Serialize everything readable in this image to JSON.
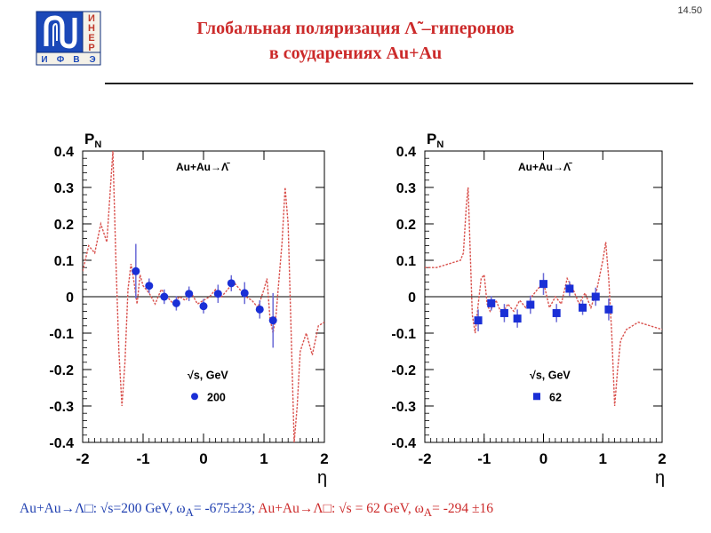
{
  "slide": {
    "number": "14.50",
    "title_line1": "Глобальная поляризация Λ̃ –гиперонов",
    "title_line2": "в соударениях Au+Au",
    "logo": {
      "letters_right": [
        "И",
        "Н",
        "Е",
        "Р"
      ],
      "letters_bottom": [
        "И",
        "Ф",
        "В",
        "Э"
      ]
    }
  },
  "footer": {
    "part1": "Au+Au→Λ□:  √s=200 GeV,  ω",
    "part1_sub": "A",
    "part1_end": "= -675±23;",
    "part2": "Au+Au→Λ□: √s = 62 GeV,  ω",
    "part2_sub": "A",
    "part2_end": "= -294 ±16"
  },
  "chart_data": [
    {
      "type": "scatter",
      "ylabel": "P",
      "ylabel_sub": "N",
      "xlabel": "η",
      "reaction_label": "Au+Au→Λ̄",
      "legend_title": "√s, GeV",
      "legend_entry": "200",
      "marker": "circle",
      "marker_color": "#1a2fd6",
      "curve_color": "#d9534f",
      "xlim": [
        -2,
        2
      ],
      "ylim": [
        -0.4,
        0.4
      ],
      "x_ticks": [
        "-2",
        "-1",
        "0",
        "1",
        "2"
      ],
      "y_ticks": [
        "0.4",
        "0.3",
        "0.2",
        "0.1",
        "0",
        "-0.1",
        "-0.2",
        "-0.3",
        "-0.4"
      ],
      "points": [
        {
          "x": -1.12,
          "y": 0.07,
          "err": 0.075
        },
        {
          "x": -0.9,
          "y": 0.03,
          "err": 0.02
        },
        {
          "x": -0.65,
          "y": 0.0,
          "err": 0.02
        },
        {
          "x": -0.45,
          "y": -0.018,
          "err": 0.02
        },
        {
          "x": -0.24,
          "y": 0.008,
          "err": 0.02
        },
        {
          "x": 0.0,
          "y": -0.026,
          "err": 0.02
        },
        {
          "x": 0.24,
          "y": 0.008,
          "err": 0.025
        },
        {
          "x": 0.46,
          "y": 0.037,
          "err": 0.022
        },
        {
          "x": 0.68,
          "y": 0.01,
          "err": 0.03
        },
        {
          "x": 0.93,
          "y": -0.035,
          "err": 0.025
        },
        {
          "x": 1.15,
          "y": -0.065,
          "err": 0.075
        }
      ],
      "curve": [
        [
          -2,
          0.07
        ],
        [
          -1.9,
          0.14
        ],
        [
          -1.8,
          0.12
        ],
        [
          -1.7,
          0.2
        ],
        [
          -1.6,
          0.15
        ],
        [
          -1.5,
          0.4
        ],
        [
          -1.45,
          0.1
        ],
        [
          -1.4,
          -0.15
        ],
        [
          -1.35,
          -0.3
        ],
        [
          -1.3,
          -0.18
        ],
        [
          -1.25,
          0.02
        ],
        [
          -1.2,
          0.09
        ],
        [
          -1.15,
          0.04
        ],
        [
          -1.1,
          -0.02
        ],
        [
          -1.05,
          0.06
        ],
        [
          -1.0,
          0.03
        ],
        [
          -0.9,
          0.01
        ],
        [
          -0.8,
          -0.02
        ],
        [
          -0.7,
          0.02
        ],
        [
          -0.6,
          0.0
        ],
        [
          -0.5,
          -0.02
        ],
        [
          -0.4,
          0.0
        ],
        [
          -0.3,
          -0.01
        ],
        [
          -0.2,
          0.01
        ],
        [
          -0.1,
          -0.02
        ],
        [
          0,
          -0.01
        ],
        [
          0.1,
          0.0
        ],
        [
          0.2,
          0.02
        ],
        [
          0.3,
          0.0
        ],
        [
          0.4,
          0.02
        ],
        [
          0.5,
          0.04
        ],
        [
          0.6,
          0.02
        ],
        [
          0.7,
          0.0
        ],
        [
          0.8,
          -0.01
        ],
        [
          0.9,
          -0.03
        ],
        [
          1.0,
          0.02
        ],
        [
          1.05,
          0.05
        ],
        [
          1.1,
          -0.06
        ],
        [
          1.15,
          -0.1
        ],
        [
          1.2,
          -0.05
        ],
        [
          1.3,
          0.15
        ],
        [
          1.35,
          0.3
        ],
        [
          1.4,
          0.2
        ],
        [
          1.45,
          -0.1
        ],
        [
          1.5,
          -0.4
        ],
        [
          1.55,
          -0.3
        ],
        [
          1.6,
          -0.15
        ],
        [
          1.7,
          -0.1
        ],
        [
          1.8,
          -0.16
        ],
        [
          1.9,
          -0.08
        ],
        [
          2,
          -0.07
        ]
      ]
    },
    {
      "type": "scatter",
      "ylabel": "P",
      "ylabel_sub": "N",
      "xlabel": "η",
      "reaction_label": "Au+Au→Λ̄",
      "legend_title": "√s, GeV",
      "legend_entry": "62",
      "marker": "square",
      "marker_color": "#1a2fd6",
      "curve_color": "#d9534f",
      "xlim": [
        -2,
        2
      ],
      "ylim": [
        -0.4,
        0.4
      ],
      "x_ticks": [
        "-2",
        "-1",
        "0",
        "1",
        "2"
      ],
      "y_ticks": [
        "0.4",
        "0.3",
        "0.2",
        "0.1",
        "0",
        "-0.1",
        "-0.2",
        "-0.3",
        "-0.4"
      ],
      "points": [
        {
          "x": -1.1,
          "y": -0.065,
          "err": 0.03
        },
        {
          "x": -0.88,
          "y": -0.018,
          "err": 0.02
        },
        {
          "x": -0.66,
          "y": -0.045,
          "err": 0.025
        },
        {
          "x": -0.44,
          "y": -0.06,
          "err": 0.025
        },
        {
          "x": -0.22,
          "y": -0.022,
          "err": 0.025
        },
        {
          "x": 0.0,
          "y": 0.035,
          "err": 0.03
        },
        {
          "x": 0.22,
          "y": -0.045,
          "err": 0.025
        },
        {
          "x": 0.44,
          "y": 0.022,
          "err": 0.02
        },
        {
          "x": 0.66,
          "y": -0.03,
          "err": 0.02
        },
        {
          "x": 0.88,
          "y": 0.0,
          "err": 0.025
        },
        {
          "x": 1.1,
          "y": -0.035,
          "err": 0.03
        }
      ],
      "curve": [
        [
          -2,
          0.08
        ],
        [
          -1.8,
          0.08
        ],
        [
          -1.6,
          0.09
        ],
        [
          -1.4,
          0.1
        ],
        [
          -1.35,
          0.12
        ],
        [
          -1.3,
          0.25
        ],
        [
          -1.27,
          0.3
        ],
        [
          -1.23,
          0.1
        ],
        [
          -1.2,
          -0.05
        ],
        [
          -1.15,
          -0.1
        ],
        [
          -1.1,
          -0.02
        ],
        [
          -1.05,
          0.05
        ],
        [
          -1.0,
          0.06
        ],
        [
          -0.95,
          -0.02
        ],
        [
          -0.9,
          -0.04
        ],
        [
          -0.8,
          -0.01
        ],
        [
          -0.7,
          -0.05
        ],
        [
          -0.6,
          -0.02
        ],
        [
          -0.5,
          -0.04
        ],
        [
          -0.4,
          -0.01
        ],
        [
          -0.3,
          -0.03
        ],
        [
          -0.2,
          0.0
        ],
        [
          -0.1,
          0.02
        ],
        [
          0,
          0.04
        ],
        [
          0.1,
          -0.03
        ],
        [
          0.2,
          0.0
        ],
        [
          0.3,
          -0.02
        ],
        [
          0.4,
          0.05
        ],
        [
          0.5,
          0.02
        ],
        [
          0.6,
          -0.02
        ],
        [
          0.7,
          0.01
        ],
        [
          0.8,
          -0.03
        ],
        [
          0.9,
          0.02
        ],
        [
          1.0,
          0.1
        ],
        [
          1.05,
          0.15
        ],
        [
          1.1,
          0.05
        ],
        [
          1.15,
          -0.1
        ],
        [
          1.2,
          -0.3
        ],
        [
          1.25,
          -0.2
        ],
        [
          1.3,
          -0.12
        ],
        [
          1.4,
          -0.09
        ],
        [
          1.6,
          -0.07
        ],
        [
          1.8,
          -0.08
        ],
        [
          2,
          -0.09
        ]
      ]
    }
  ]
}
